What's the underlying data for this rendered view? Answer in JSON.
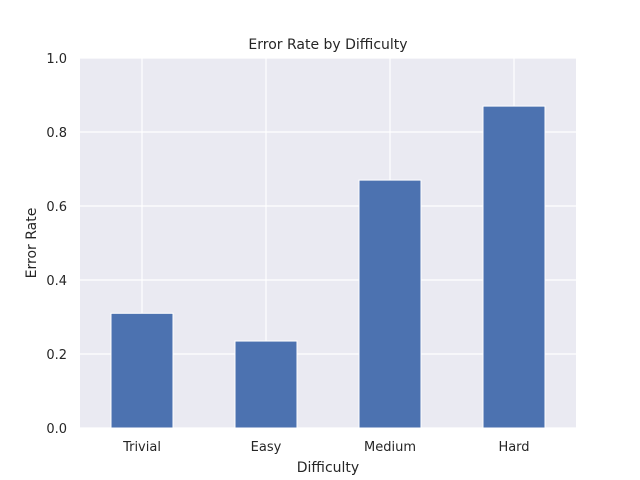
{
  "chart_data": {
    "type": "bar",
    "title": "Error Rate by Difficulty",
    "xlabel": "Difficulty",
    "ylabel": "Error Rate",
    "categories": [
      "Trivial",
      "Easy",
      "Medium",
      "Hard"
    ],
    "values": [
      0.31,
      0.235,
      0.67,
      0.87
    ],
    "ylim": [
      0,
      1.0
    ],
    "yticks": [
      0.0,
      0.2,
      0.4,
      0.6,
      0.8,
      1.0
    ],
    "ytick_labels": [
      "0.0",
      "0.2",
      "0.4",
      "0.6",
      "0.8",
      "1.0"
    ],
    "grid": true,
    "bar_color": "#4c72b0",
    "plot_background": "#eaeaf2",
    "grid_color": "#ffffff"
  }
}
